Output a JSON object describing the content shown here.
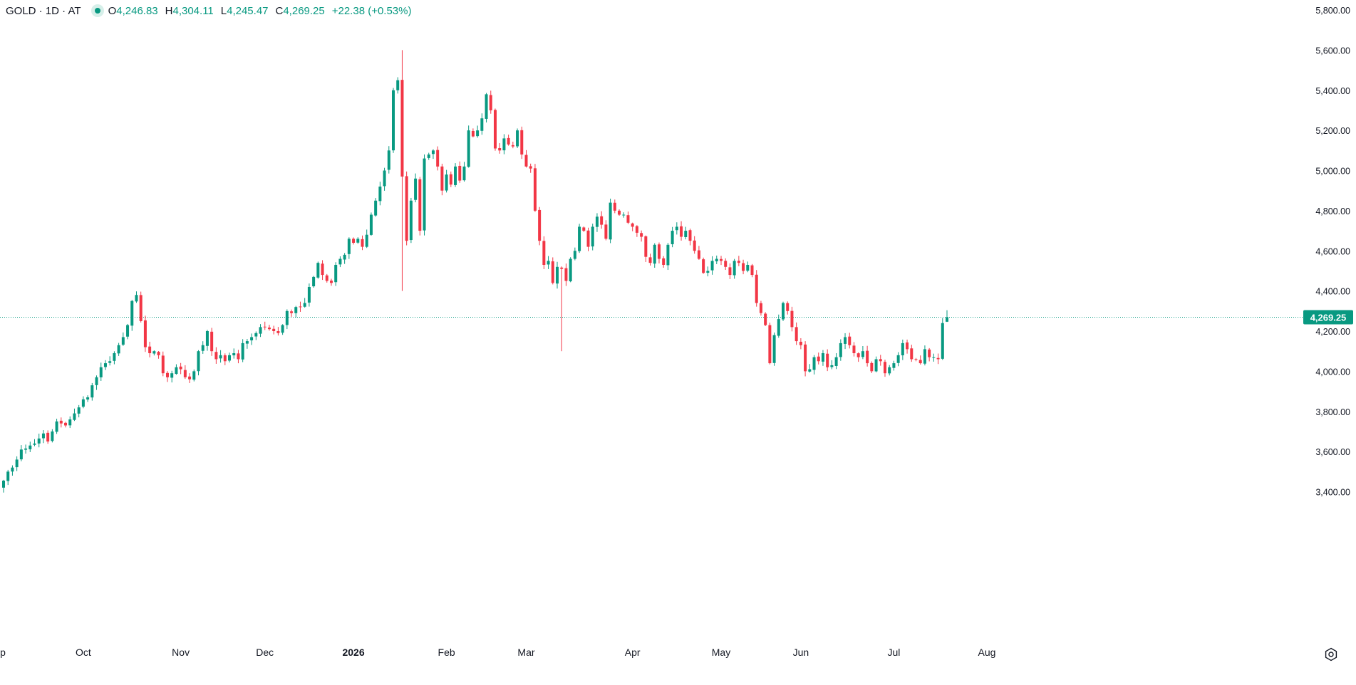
{
  "legend": {
    "symbol": "GOLD · 1D · AT",
    "open_label": "O",
    "open": "4,246.83",
    "high_label": "H",
    "high": "4,304.11",
    "low_label": "L",
    "low": "4,245.47",
    "close_label": "C",
    "close": "4,269.25",
    "change": "+22.38 (+0.53%)"
  },
  "colors": {
    "up": "#089981",
    "down": "#f23645",
    "axis_text": "#131722",
    "price_line": "#089981"
  },
  "icons": {
    "settings": "settings-gear-icon"
  },
  "chart_data": {
    "type": "candlestick",
    "symbol": "GOLD",
    "interval": "1D",
    "ylim": [
      3300,
      5800
    ],
    "y_ticks": [
      "3,400.00",
      "3,600.00",
      "3,800.00",
      "4,000.00",
      "4,200.00",
      "4,400.00",
      "4,600.00",
      "4,800.00",
      "5,000.00",
      "5,200.00",
      "5,400.00",
      "5,600.00",
      "5,800.00"
    ],
    "x_ticks": [
      {
        "label": "p",
        "bar": 0,
        "bold": false
      },
      {
        "label": "Oct",
        "bar": 18,
        "bold": false
      },
      {
        "label": "Nov",
        "bar": 40,
        "bold": false
      },
      {
        "label": "Dec",
        "bar": 59,
        "bold": false
      },
      {
        "label": "2026",
        "bar": 79,
        "bold": true
      },
      {
        "label": "Feb",
        "bar": 100,
        "bold": false
      },
      {
        "label": "Mar",
        "bar": 118,
        "bold": false
      },
      {
        "label": "Apr",
        "bar": 142,
        "bold": false
      },
      {
        "label": "May",
        "bar": 162,
        "bold": false
      },
      {
        "label": "Jun",
        "bar": 180,
        "bold": false
      },
      {
        "label": "Jul",
        "bar": 201,
        "bold": false
      },
      {
        "label": "Aug",
        "bar": 222,
        "bold": false
      }
    ],
    "last_price": 4269.25,
    "last_price_label": "4,269.25",
    "closes": [
      3455,
      3500,
      3520,
      3560,
      3610,
      3615,
      3630,
      3640,
      3665,
      3690,
      3650,
      3700,
      3750,
      3740,
      3730,
      3760,
      3790,
      3820,
      3860,
      3870,
      3930,
      3970,
      4020,
      4040,
      4050,
      4090,
      4130,
      4170,
      4230,
      4350,
      4380,
      4250,
      4120,
      4090,
      4100,
      4080,
      3990,
      3970,
      3990,
      4020,
      4010,
      3970,
      3960,
      4000,
      4100,
      4130,
      4200,
      4100,
      4060,
      4080,
      4050,
      4080,
      4090,
      4060,
      4140,
      4150,
      4170,
      4190,
      4220,
      4220,
      4210,
      4200,
      4190,
      4230,
      4300,
      4290,
      4320,
      4320,
      4340,
      4420,
      4470,
      4540,
      4480,
      4450,
      4440,
      4530,
      4560,
      4580,
      4660,
      4640,
      4660,
      4620,
      4680,
      4780,
      4850,
      4920,
      5000,
      5100,
      5400,
      5450,
      4970,
      4650,
      4850,
      4960,
      4700,
      5060,
      5080,
      5100,
      5020,
      4900,
      4980,
      4930,
      5020,
      4950,
      5020,
      5200,
      5170,
      5200,
      5260,
      5380,
      5300,
      5110,
      5100,
      5160,
      5130,
      5120,
      5200,
      5080,
      5020,
      5010,
      4800,
      4650,
      4530,
      4550,
      4440,
      4520,
      4510,
      4450,
      4560,
      4600,
      4720,
      4700,
      4620,
      4720,
      4770,
      4730,
      4660,
      4840,
      4800,
      4780,
      4780,
      4740,
      4720,
      4690,
      4670,
      4570,
      4540,
      4630,
      4560,
      4530,
      4630,
      4700,
      4720,
      4670,
      4700,
      4650,
      4600,
      4560,
      4490,
      4500,
      4550,
      4560,
      4550,
      4520,
      4480,
      4550,
      4540,
      4500,
      4530,
      4480,
      4340,
      4290,
      4230,
      4040,
      4180,
      4260,
      4340,
      4300,
      4220,
      4150,
      4130,
      4000,
      4010,
      4070,
      4050,
      4090,
      4020,
      4030,
      4070,
      4140,
      4170,
      4130,
      4090,
      4070,
      4100,
      4040,
      4000,
      4060,
      4050,
      3990,
      4020,
      4040,
      4080,
      4140,
      4110,
      4060,
      4060,
      4040,
      4110,
      4070,
      4070,
      4060,
      4240,
      4269.25
    ]
  }
}
